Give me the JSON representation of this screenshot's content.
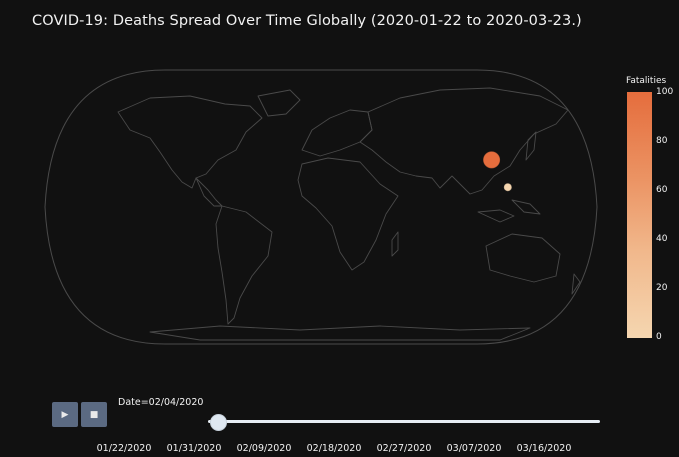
{
  "title": "COVID-19: Deaths Spread Over Time  Globally (2020-01-22 to 2020-03-23.)",
  "colorbar": {
    "title": "Fatalities",
    "ticks": [
      "100",
      "80",
      "60",
      "40",
      "20",
      "0"
    ],
    "colors": [
      "#f5d6b0",
      "#e56d3d"
    ]
  },
  "markers": [
    {
      "name": "Hubei",
      "lat": 30.97,
      "lon": 112.27,
      "value": 100
    },
    {
      "name": "Philippines",
      "lat": 13.0,
      "lon": 122.0,
      "value": 1
    }
  ],
  "slider": {
    "current_label": "Date=02/04/2020",
    "play_icon": "play-icon",
    "stop_icon": "stop-icon",
    "ticks": [
      "01/22/2020",
      "01/31/2020",
      "02/09/2020",
      "02/18/2020",
      "02/27/2020",
      "03/07/2020",
      "03/16/2020"
    ]
  }
}
